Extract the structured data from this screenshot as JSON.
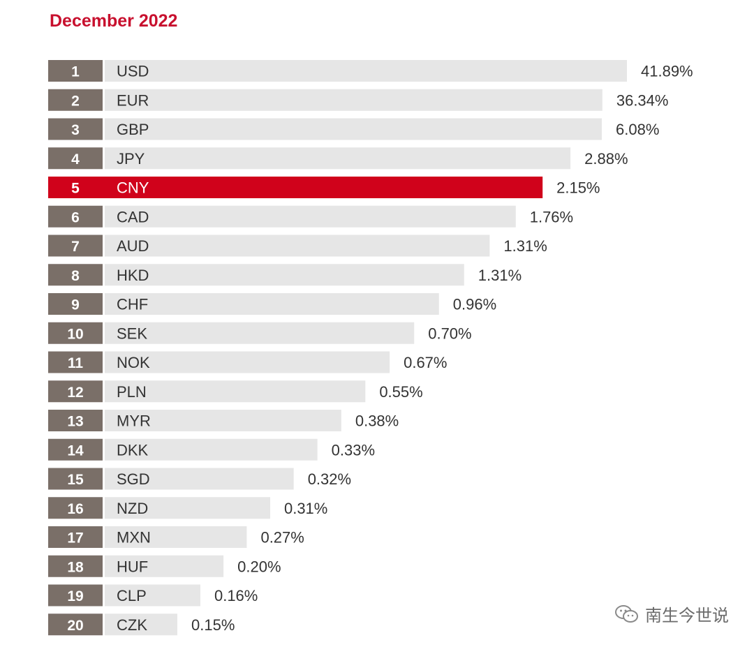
{
  "chart_data": {
    "type": "bar",
    "orientation": "horizontal",
    "title": "December 2022",
    "highlight_rank": 5,
    "colors": {
      "title": "#c8102e",
      "highlight": "#d0021b",
      "rank_box": "#7a6f68",
      "bar": "#e6e6e6",
      "label": "#333333"
    },
    "rows": [
      {
        "rank": "1",
        "currency": "USD",
        "label": "41.89%",
        "value": 41.89
      },
      {
        "rank": "2",
        "currency": "EUR",
        "label": "36.34%",
        "value": 36.34
      },
      {
        "rank": "3",
        "currency": "GBP",
        "label": "6.08%",
        "value": 6.08
      },
      {
        "rank": "4",
        "currency": "JPY",
        "label": "2.88%",
        "value": 2.88
      },
      {
        "rank": "5",
        "currency": "CNY",
        "label": "2.15%",
        "value": 2.15
      },
      {
        "rank": "6",
        "currency": "CAD",
        "label": "1.76%",
        "value": 1.76
      },
      {
        "rank": "7",
        "currency": "AUD",
        "label": "1.31%",
        "value": 1.31
      },
      {
        "rank": "8",
        "currency": "HKD",
        "label": "1.31%",
        "value": 1.31
      },
      {
        "rank": "9",
        "currency": "CHF",
        "label": "0.96%",
        "value": 0.96
      },
      {
        "rank": "10",
        "currency": "SEK",
        "label": "0.70%",
        "value": 0.7
      },
      {
        "rank": "11",
        "currency": "NOK",
        "label": "0.67%",
        "value": 0.67
      },
      {
        "rank": "12",
        "currency": "PLN",
        "label": "0.55%",
        "value": 0.55
      },
      {
        "rank": "13",
        "currency": "MYR",
        "label": "0.38%",
        "value": 0.38
      },
      {
        "rank": "14",
        "currency": "DKK",
        "label": "0.33%",
        "value": 0.33
      },
      {
        "rank": "15",
        "currency": "SGD",
        "label": "0.32%",
        "value": 0.32
      },
      {
        "rank": "16",
        "currency": "NZD",
        "label": "0.31%",
        "value": 0.31
      },
      {
        "rank": "17",
        "currency": "MXN",
        "label": "0.27%",
        "value": 0.27
      },
      {
        "rank": "18",
        "currency": "HUF",
        "label": "0.20%",
        "value": 0.2
      },
      {
        "rank": "19",
        "currency": "CLP",
        "label": "0.16%",
        "value": 0.16
      },
      {
        "rank": "20",
        "currency": "CZK",
        "label": "0.15%",
        "value": 0.15
      }
    ]
  },
  "watermark": {
    "text": "南生今世说",
    "icon": "wechat-icon"
  }
}
